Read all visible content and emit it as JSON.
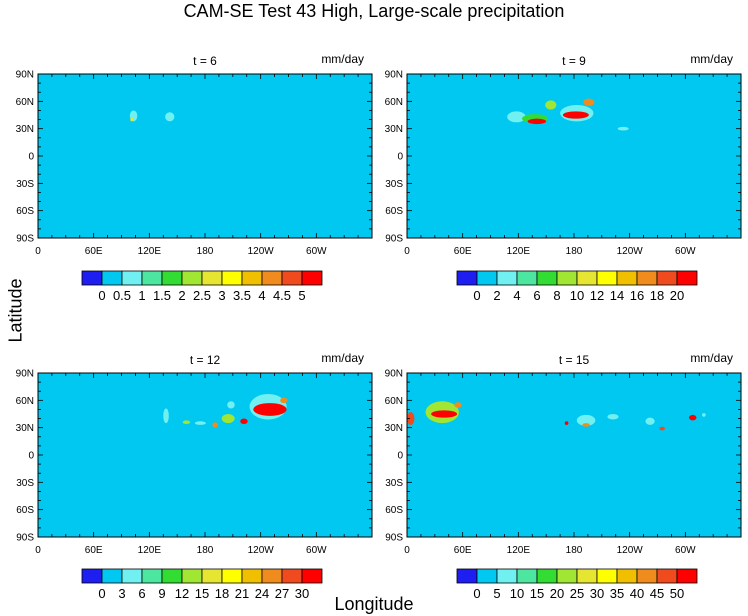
{
  "figure": {
    "title": "CAM-SE Test 43 High, Large-scale precipitation",
    "ylabel": "Latitude",
    "xlabel": "Longitude"
  },
  "chart_data": [
    {
      "type": "heatmap",
      "title": "t = 6",
      "units": "mm/day",
      "x_ticks": [
        "0",
        "60E",
        "120E",
        "180",
        "120W",
        "60W"
      ],
      "y_ticks": [
        "90N",
        "60N",
        "30N",
        "0",
        "30S",
        "60S",
        "90S"
      ],
      "xlim": [
        0,
        360
      ],
      "ylim": [
        -90,
        90
      ],
      "colorbar": {
        "levels": [
          "0",
          "0.5",
          "1",
          "1.5",
          "2",
          "2.5",
          "3",
          "3.5",
          "4",
          "4.5",
          "5"
        ],
        "colors": [
          "#1e1ef0",
          "#00c8f0",
          "#70f0f0",
          "#4ce6a0",
          "#32dc32",
          "#a0e632",
          "#e6e632",
          "#ffff00",
          "#f0c000",
          "#f08c1e",
          "#f04b1e",
          "#ff0000"
        ]
      },
      "background_color": "#00c8f0",
      "features": [
        {
          "lon": 103,
          "lat": 44,
          "rx": 4,
          "ry": 6,
          "color": "#70f0f0"
        },
        {
          "lon": 101,
          "lat": 40,
          "rx": 1.5,
          "ry": 2,
          "color": "#e6e632"
        },
        {
          "lon": 142,
          "lat": 43,
          "rx": 5,
          "ry": 5,
          "color": "#70f0f0"
        }
      ]
    },
    {
      "type": "heatmap",
      "title": "t = 9",
      "units": "mm/day",
      "x_ticks": [
        "0",
        "60E",
        "120E",
        "180",
        "120W",
        "60W"
      ],
      "y_ticks": [
        "90N",
        "60N",
        "30N",
        "0",
        "30S",
        "60S",
        "90S"
      ],
      "xlim": [
        0,
        360
      ],
      "ylim": [
        -90,
        90
      ],
      "colorbar": {
        "levels": [
          "0",
          "2",
          "4",
          "6",
          "8",
          "10",
          "12",
          "14",
          "16",
          "18",
          "20"
        ],
        "colors": [
          "#1e1ef0",
          "#00c8f0",
          "#70f0f0",
          "#4ce6a0",
          "#32dc32",
          "#a0e632",
          "#e6e632",
          "#ffff00",
          "#f0c000",
          "#f08c1e",
          "#f04b1e",
          "#ff0000"
        ]
      },
      "background_color": "#00c8f0",
      "features": [
        {
          "lon": 118,
          "lat": 43,
          "rx": 10,
          "ry": 6,
          "color": "#70f0f0"
        },
        {
          "lon": 138,
          "lat": 41,
          "rx": 14,
          "ry": 5,
          "color": "#32dc32"
        },
        {
          "lon": 140,
          "lat": 38,
          "rx": 10,
          "ry": 3,
          "color": "#ff0000"
        },
        {
          "lon": 155,
          "lat": 56,
          "rx": 6,
          "ry": 5,
          "color": "#a0e632"
        },
        {
          "lon": 183,
          "lat": 47,
          "rx": 18,
          "ry": 9,
          "color": "#70f0f0"
        },
        {
          "lon": 182,
          "lat": 45,
          "rx": 14,
          "ry": 4,
          "color": "#ff0000"
        },
        {
          "lon": 196,
          "lat": 59,
          "rx": 6,
          "ry": 4,
          "color": "#f08c1e"
        },
        {
          "lon": 233,
          "lat": 30,
          "rx": 6,
          "ry": 2,
          "color": "#70f0f0"
        }
      ]
    },
    {
      "type": "heatmap",
      "title": "t = 12",
      "units": "mm/day",
      "x_ticks": [
        "0",
        "60E",
        "120E",
        "180",
        "120W",
        "60W"
      ],
      "y_ticks": [
        "90N",
        "60N",
        "30N",
        "0",
        "30S",
        "60S",
        "90S"
      ],
      "xlim": [
        0,
        360
      ],
      "ylim": [
        -90,
        90
      ],
      "colorbar": {
        "levels": [
          "0",
          "3",
          "6",
          "9",
          "12",
          "15",
          "18",
          "21",
          "24",
          "27",
          "30"
        ],
        "colors": [
          "#1e1ef0",
          "#00c8f0",
          "#70f0f0",
          "#4ce6a0",
          "#32dc32",
          "#a0e632",
          "#e6e632",
          "#ffff00",
          "#f0c000",
          "#f08c1e",
          "#f04b1e",
          "#ff0000"
        ]
      },
      "background_color": "#00c8f0",
      "features": [
        {
          "lon": 138,
          "lat": 43,
          "rx": 3,
          "ry": 8,
          "color": "#70f0f0"
        },
        {
          "lon": 160,
          "lat": 36,
          "rx": 4,
          "ry": 2,
          "color": "#a0e632"
        },
        {
          "lon": 175,
          "lat": 35,
          "rx": 6,
          "ry": 2,
          "color": "#70f0f0"
        },
        {
          "lon": 191,
          "lat": 33,
          "rx": 3,
          "ry": 3,
          "color": "#f08c1e"
        },
        {
          "lon": 205,
          "lat": 40,
          "rx": 7,
          "ry": 5,
          "color": "#a0e632"
        },
        {
          "lon": 208,
          "lat": 55,
          "rx": 4,
          "ry": 4,
          "color": "#70f0f0"
        },
        {
          "lon": 222,
          "lat": 37,
          "rx": 4,
          "ry": 3,
          "color": "#ff0000"
        },
        {
          "lon": 248,
          "lat": 53,
          "rx": 20,
          "ry": 14,
          "color": "#70f0f0"
        },
        {
          "lon": 250,
          "lat": 50,
          "rx": 18,
          "ry": 7,
          "color": "#ff0000"
        },
        {
          "lon": 265,
          "lat": 60,
          "rx": 4,
          "ry": 3,
          "color": "#f08c1e"
        }
      ]
    },
    {
      "type": "heatmap",
      "title": "t = 15",
      "units": "mm/day",
      "x_ticks": [
        "0",
        "60E",
        "120E",
        "180",
        "120W",
        "60W"
      ],
      "y_ticks": [
        "90N",
        "60N",
        "30N",
        "0",
        "30S",
        "60S",
        "90S"
      ],
      "xlim": [
        0,
        360
      ],
      "ylim": [
        -90,
        90
      ],
      "colorbar": {
        "levels": [
          "0",
          "5",
          "10",
          "15",
          "20",
          "25",
          "30",
          "35",
          "40",
          "45",
          "50"
        ],
        "colors": [
          "#1e1ef0",
          "#00c8f0",
          "#70f0f0",
          "#4ce6a0",
          "#32dc32",
          "#a0e632",
          "#e6e632",
          "#ffff00",
          "#f0c000",
          "#f08c1e",
          "#f04b1e",
          "#ff0000"
        ]
      },
      "background_color": "#00c8f0",
      "features": [
        {
          "lon": 4,
          "lat": 40,
          "rx": 4,
          "ry": 7,
          "color": "#f04b1e"
        },
        {
          "lon": 38,
          "lat": 47,
          "rx": 18,
          "ry": 12,
          "color": "#a0e632"
        },
        {
          "lon": 40,
          "lat": 45,
          "rx": 14,
          "ry": 4,
          "color": "#ff0000"
        },
        {
          "lon": 55,
          "lat": 55,
          "rx": 4,
          "ry": 3,
          "color": "#f08c1e"
        },
        {
          "lon": 172,
          "lat": 35,
          "rx": 2,
          "ry": 2,
          "color": "#ff0000"
        },
        {
          "lon": 193,
          "lat": 38,
          "rx": 10,
          "ry": 6,
          "color": "#70f0f0"
        },
        {
          "lon": 193,
          "lat": 33,
          "rx": 4,
          "ry": 2,
          "color": "#f08c1e"
        },
        {
          "lon": 222,
          "lat": 42,
          "rx": 6,
          "ry": 3,
          "color": "#70f0f0"
        },
        {
          "lon": 262,
          "lat": 37,
          "rx": 5,
          "ry": 4,
          "color": "#70f0f0"
        },
        {
          "lon": 275,
          "lat": 29,
          "rx": 3,
          "ry": 2,
          "color": "#f04b1e"
        },
        {
          "lon": 308,
          "lat": 41,
          "rx": 4,
          "ry": 3,
          "color": "#ff0000"
        },
        {
          "lon": 320,
          "lat": 44,
          "rx": 2,
          "ry": 2,
          "color": "#70f0f0"
        }
      ]
    }
  ]
}
